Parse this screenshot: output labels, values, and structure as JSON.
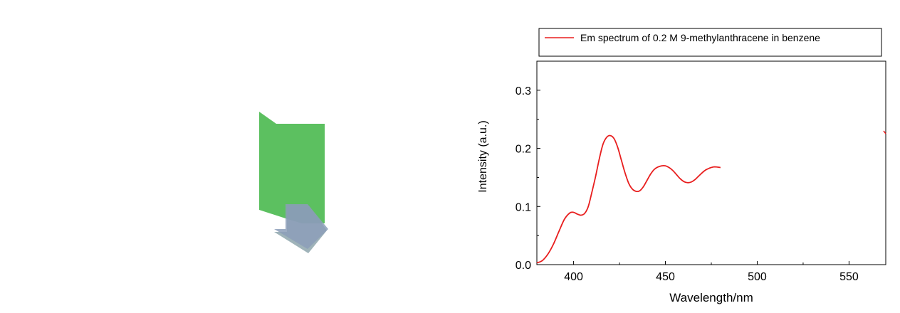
{
  "chart_data": {
    "type": "line",
    "legend": {
      "label": "Em spectrum of 0.2 M 9-methylanthracene in benzene",
      "position": "top"
    },
    "xlabel": "Wavelength/nm",
    "ylabel": "Intensity (a.u.)",
    "xlim": [
      380,
      570
    ],
    "ylim": [
      0.0,
      0.35
    ],
    "x_ticks": [
      400,
      450,
      500,
      550
    ],
    "x_tick_labels": [
      "400",
      "450",
      "500",
      "550"
    ],
    "y_ticks": [
      0.0,
      0.1,
      0.2,
      0.3
    ],
    "y_tick_labels": [
      "0.0",
      "0.1",
      "0.2",
      "0.3"
    ],
    "grid": false,
    "series": [
      {
        "name": "Em spectrum of 0.2 M 9-methylanthracene in benzene",
        "color": "#e81e1e",
        "x": [
          380,
          383,
          386,
          389,
          392,
          395,
          398,
          400,
          402,
          404,
          406,
          408,
          410,
          412,
          414,
          416,
          418,
          420,
          422,
          424,
          426,
          428,
          430,
          432,
          434,
          436,
          438,
          440,
          442,
          444,
          446,
          448,
          450,
          452,
          454,
          456,
          458,
          460,
          462,
          464,
          466,
          468,
          470,
          472,
          474,
          476,
          478,
          480
        ],
        "y": [
          0.003,
          0.007,
          0.018,
          0.035,
          0.057,
          0.078,
          0.089,
          0.09,
          0.087,
          0.085,
          0.088,
          0.1,
          0.125,
          0.152,
          0.182,
          0.207,
          0.219,
          0.222,
          0.217,
          0.202,
          0.18,
          0.158,
          0.14,
          0.13,
          0.126,
          0.127,
          0.134,
          0.145,
          0.156,
          0.164,
          0.168,
          0.17,
          0.17,
          0.167,
          0.162,
          0.155,
          0.148,
          0.143,
          0.141,
          0.142,
          0.146,
          0.152,
          0.158,
          0.163,
          0.166,
          0.168,
          0.168,
          0.167
        ]
      }
    ]
  },
  "icon": {
    "name": "green-folder-down-arrow-icon",
    "colors": [
      "#5cc060",
      "#8a9bb5"
    ]
  }
}
